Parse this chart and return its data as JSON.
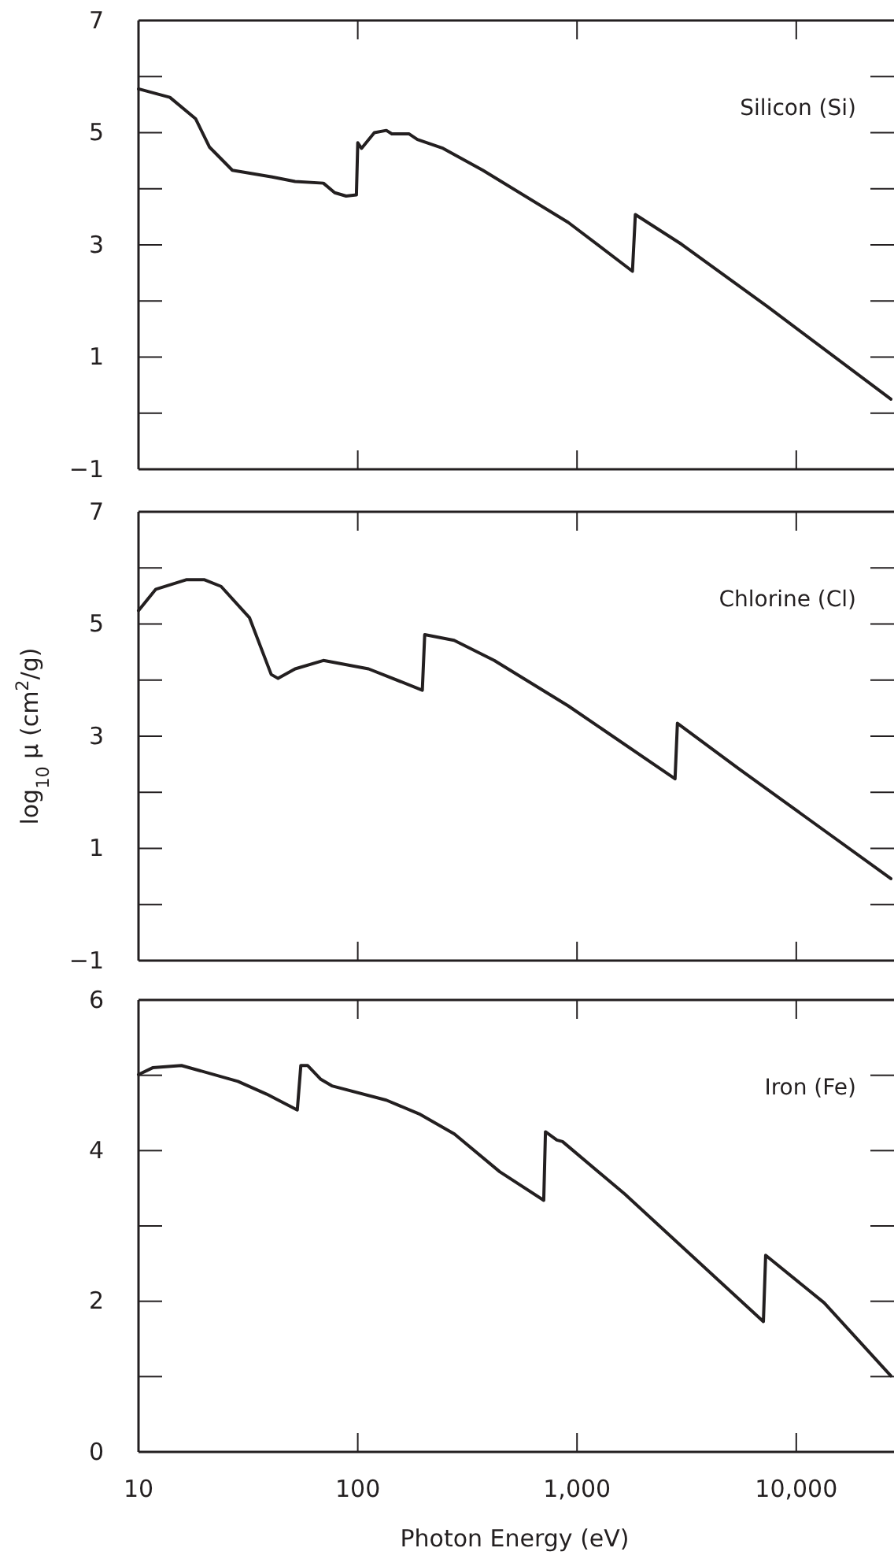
{
  "chart_data": [
    {
      "type": "line",
      "log": "x",
      "tick_labels": "y",
      "xlim": [
        10,
        27000
      ],
      "ylim": [
        -1,
        7
      ],
      "xticks": [
        {
          "value": 10,
          "label": null
        },
        {
          "value": 100,
          "label": null
        },
        {
          "value": 1000,
          "label": null
        },
        {
          "value": 10000,
          "label": null
        }
      ],
      "yticks": [
        {
          "value": -1,
          "label": "−1"
        },
        {
          "value": 0,
          "label": null
        },
        {
          "value": 1,
          "label": "1"
        },
        {
          "value": 2,
          "label": null
        },
        {
          "value": 3,
          "label": "3"
        },
        {
          "value": 4,
          "label": null
        },
        {
          "value": 5,
          "label": "5"
        },
        {
          "value": 6,
          "label": null
        },
        {
          "value": 7,
          "label": "7"
        }
      ],
      "series": [
        {
          "name": "Silicon (Si)",
          "color": "#231f20",
          "x": [
            10,
            13.9,
            18.2,
            21.1,
            26.8,
            40.7,
            51.8,
            69.7,
            78.5,
            88.5,
            98.6,
            100,
            104,
            119,
            135,
            143,
            171,
            187,
            245,
            372,
            912,
            1790,
            1845,
            3000,
            7390,
            27000
          ],
          "values": [
            5.78,
            5.63,
            5.25,
            4.74,
            4.33,
            4.21,
            4.13,
            4.1,
            3.93,
            3.87,
            3.89,
            4.82,
            4.72,
            5.0,
            5.04,
            4.98,
            4.98,
            4.88,
            4.72,
            4.33,
            3.4,
            2.53,
            3.54,
            3.01,
            1.9,
            0.25
          ]
        }
      ]
    },
    {
      "type": "line",
      "log": "x",
      "tick_labels": "y",
      "xlim": [
        10,
        27000
      ],
      "ylim": [
        -1,
        7
      ],
      "ylabel": "log$_{10}$ μ (cm$^{2}$/g)",
      "xticks": [
        {
          "value": 10,
          "label": null
        },
        {
          "value": 100,
          "label": null
        },
        {
          "value": 1000,
          "label": null
        },
        {
          "value": 10000,
          "label": null
        }
      ],
      "yticks": [
        {
          "value": -1,
          "label": "−1"
        },
        {
          "value": 0,
          "label": null
        },
        {
          "value": 1,
          "label": "1"
        },
        {
          "value": 2,
          "label": null
        },
        {
          "value": 3,
          "label": "3"
        },
        {
          "value": 4,
          "label": null
        },
        {
          "value": 5,
          "label": "5"
        },
        {
          "value": 6,
          "label": null
        },
        {
          "value": 7,
          "label": "7"
        }
      ],
      "series": [
        {
          "name": "Chlorine (Cl)",
          "color": "#231f20",
          "x": [
            10,
            12.0,
            16.6,
            19.9,
            23.8,
            32.1,
            40.3,
            43.3,
            51.8,
            69.7,
            112,
            197,
            202,
            275,
            419,
            912,
            2800,
            2870,
            5470,
            27000
          ],
          "values": [
            5.24,
            5.62,
            5.79,
            5.79,
            5.67,
            5.11,
            4.1,
            4.03,
            4.2,
            4.35,
            4.2,
            3.82,
            4.81,
            4.71,
            4.35,
            3.54,
            2.24,
            3.23,
            2.42,
            0.46
          ]
        }
      ]
    },
    {
      "type": "line",
      "log": "x",
      "xlim": [
        10,
        27000
      ],
      "ylim": [
        0,
        6
      ],
      "xlabel": "Photon Energy (eV)",
      "xticks": [
        10,
        100,
        {
          "value": 1000,
          "label": "1,000"
        },
        {
          "value": 10000,
          "label": "10,000"
        }
      ],
      "yticks": [
        0,
        {
          "value": 1,
          "label": null
        },
        2,
        {
          "value": 3,
          "label": null
        },
        4,
        {
          "value": 5,
          "label": null
        },
        6
      ],
      "series": [
        {
          "name": "Iron (Fe)",
          "color": "#231f20",
          "x": [
            10,
            11.6,
            15.7,
            28.4,
            38.4,
            53.0,
            55,
            59,
            67.6,
            76.2,
            135,
            193,
            276,
            444,
            705,
            718,
            809,
            859,
            1656,
            7080,
            7250,
            13400,
            27000
          ],
          "values": [
            5.01,
            5.1,
            5.13,
            4.92,
            4.75,
            4.54,
            5.13,
            5.13,
            4.95,
            4.86,
            4.67,
            4.48,
            4.22,
            3.72,
            3.34,
            4.25,
            4.14,
            4.12,
            3.42,
            1.73,
            2.61,
            1.98,
            1.01
          ]
        }
      ]
    }
  ]
}
